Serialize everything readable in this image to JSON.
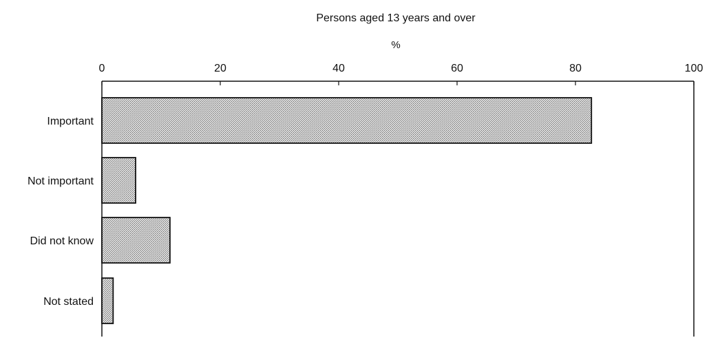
{
  "chart_data": {
    "type": "bar",
    "orientation": "horizontal",
    "title": "",
    "subtitle": "Persons aged 13 years and over",
    "xlabel": "%",
    "ylabel": "",
    "xlim": [
      0,
      100
    ],
    "x_ticks": [
      0,
      20,
      40,
      60,
      80,
      100
    ],
    "categories": [
      "Important",
      "Not important",
      "Did not know",
      "Not stated"
    ],
    "values": [
      82.7,
      5.7,
      11.5,
      1.9
    ],
    "grid": false,
    "legend": "none",
    "colors": {
      "bar_fill": "#c4c4c4",
      "bar_stroke": "#111111",
      "axis": "#111111",
      "background": "#ffffff"
    }
  }
}
